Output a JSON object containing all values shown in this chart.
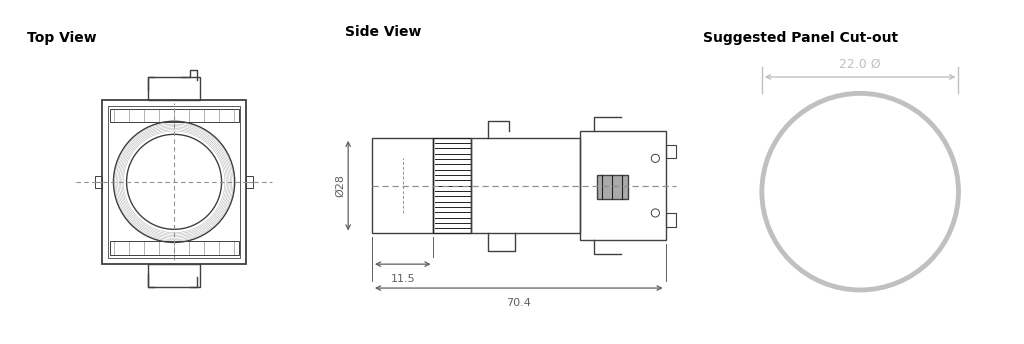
{
  "bg_color": "#ffffff",
  "line_color": "#404040",
  "dark_color": "#222222",
  "dim_color": "#606060",
  "gray_color": "#c0c0c0",
  "dashed_color": "#909090",
  "title_fontsize": 10,
  "label_fontsize": 8,
  "titles": [
    "Top View",
    "Side View",
    "Suggested Panel Cut-out"
  ],
  "dim_11_5": "11.5",
  "dim_70_4": "70.4",
  "dim_28": "Ø28",
  "dim_22": "22.0 Ø"
}
